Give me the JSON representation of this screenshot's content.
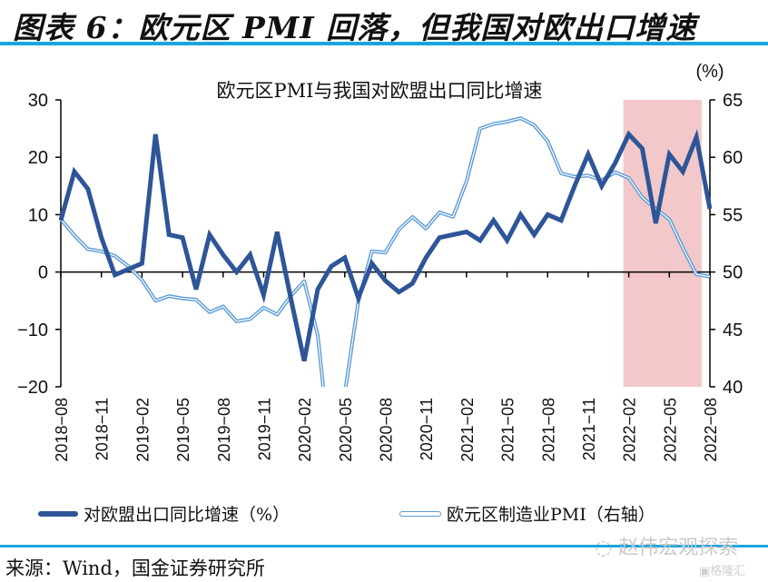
{
  "figure": {
    "title": "图表 6：欧元区 PMI 回落，但我国对欧出口增速",
    "source": "来源：Wind，国金证券研究所",
    "watermark": "赵伟宏观探索",
    "watermark2": "格隆汇",
    "colors": {
      "export_line": "#2e5597",
      "pmi_line": "#5b9bd5",
      "highlight": "#f2c8cb",
      "rule": "#1aa4de"
    }
  },
  "chart_data": {
    "type": "line",
    "title": "欧元区PMI与我国对欧盟出口同比增速",
    "unit_label": "(%)",
    "xlabel": "",
    "ylabel": "",
    "x": [
      "2018-08",
      "2018-09",
      "2018-10",
      "2018-11",
      "2018-12",
      "2019-01",
      "2019-02",
      "2019-03",
      "2019-04",
      "2019-05",
      "2019-06",
      "2019-07",
      "2019-08",
      "2019-09",
      "2019-10",
      "2019-11",
      "2019-12",
      "2020-01",
      "2020-02",
      "2020-03",
      "2020-04",
      "2020-05",
      "2020-06",
      "2020-07",
      "2020-08",
      "2020-09",
      "2020-10",
      "2020-11",
      "2020-12",
      "2021-01",
      "2021-02",
      "2021-03",
      "2021-04",
      "2021-05",
      "2021-06",
      "2021-07",
      "2021-08",
      "2021-09",
      "2021-10",
      "2021-11",
      "2021-12",
      "2022-01",
      "2022-02",
      "2022-03",
      "2022-04",
      "2022-05",
      "2022-06",
      "2022-07",
      "2022-08"
    ],
    "x_tick_labels": [
      "2018-08",
      "2018-11",
      "2019-02",
      "2019-05",
      "2019-08",
      "2019-11",
      "2020-02",
      "2020-05",
      "2020-08",
      "2020-11",
      "2021-02",
      "2021-05",
      "2021-08",
      "2021-11",
      "2022-02",
      "2022-05",
      "2022-08"
    ],
    "y_left": {
      "ylim": [
        -20,
        30
      ],
      "ticks": [
        "30",
        "20",
        "10",
        "0",
        "-10",
        "-20"
      ]
    },
    "y_right": {
      "ylim": [
        40,
        65
      ],
      "ticks": [
        "65",
        "60",
        "55",
        "50",
        "45",
        "40"
      ]
    },
    "highlight_range": [
      "2022-02",
      "2022-08"
    ],
    "grid": false,
    "legend_position": "bottom",
    "series": [
      {
        "name": "对欧盟出口同比增速（%）",
        "axis": "left",
        "values": [
          9,
          17.5,
          14.5,
          6,
          -0.5,
          0.5,
          1.5,
          24,
          6.5,
          6,
          -3,
          6.5,
          3,
          0,
          3,
          -4,
          7,
          -4.5,
          -15.5,
          -3,
          1,
          2.5,
          -4.5,
          1.5,
          -1.5,
          -3.5,
          -2,
          2.5,
          6,
          6.5,
          7,
          5.5,
          9,
          5.5,
          10,
          6.5,
          10,
          9,
          15,
          20.5,
          15,
          19,
          24,
          21.5,
          8.5,
          20.5,
          17.5,
          23.5,
          11
        ]
      },
      {
        "name": "欧元区制造业PMI（右轴）",
        "axis": "right",
        "values": [
          54.6,
          53.2,
          52.0,
          51.8,
          51.4,
          50.5,
          49.3,
          47.5,
          47.9,
          47.7,
          47.6,
          46.5,
          47.0,
          45.7,
          45.9,
          46.9,
          46.3,
          47.9,
          49.2,
          44.5,
          33.4,
          39.4,
          47.4,
          51.8,
          51.7,
          53.7,
          54.8,
          53.8,
          55.2,
          54.8,
          57.9,
          62.5,
          62.9,
          63.1,
          63.4,
          62.8,
          61.4,
          58.6,
          58.3,
          58.4,
          58.0,
          58.7,
          58.2,
          56.5,
          55.5,
          54.6,
          52.1,
          49.8,
          49.6
        ]
      }
    ]
  }
}
